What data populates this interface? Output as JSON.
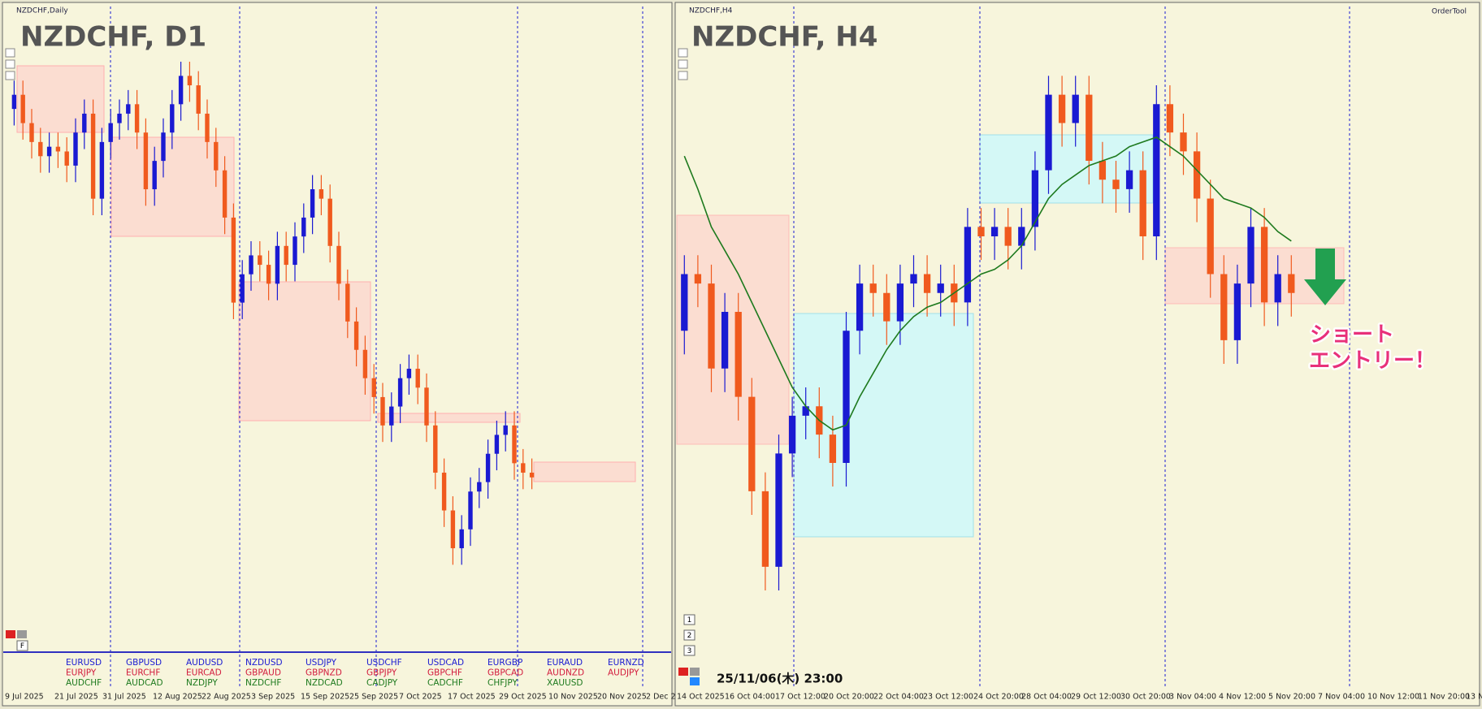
{
  "chart_data": [
    {
      "type": "candlestick",
      "window_title": "NZDCHF,Daily",
      "title": "NZDCHF, D1",
      "up_color": "#1a1ad2",
      "down_color": "#f05a1e",
      "ylim": [
        0.454,
        0.4812
      ],
      "x_labels": [
        "9 Jul 2025",
        "21 Jul 2025",
        "31 Jul 2025",
        "12 Aug 2025",
        "22 Aug 2025",
        "3 Sep 2025",
        "15 Sep 2025",
        "25 Sep 2025",
        "7 Oct 2025",
        "17 Oct 2025",
        "29 Oct 2025",
        "10 Nov 2025",
        "20 Nov 2025",
        "2 Dec 2"
      ],
      "buttons": [
        "F"
      ],
      "candles": [
        [
          0.477,
          0.4782,
          0.4763,
          0.4776
        ],
        [
          0.4776,
          0.4782,
          0.4757,
          0.4764
        ],
        [
          0.4764,
          0.477,
          0.4749,
          0.4756
        ],
        [
          0.4756,
          0.4762,
          0.4743,
          0.475
        ],
        [
          0.475,
          0.476,
          0.4743,
          0.4754
        ],
        [
          0.4754,
          0.476,
          0.4745,
          0.4752
        ],
        [
          0.4752,
          0.4758,
          0.4739,
          0.4746
        ],
        [
          0.4746,
          0.4766,
          0.4739,
          0.476
        ],
        [
          0.476,
          0.4774,
          0.4753,
          0.4768
        ],
        [
          0.4768,
          0.4774,
          0.4725,
          0.4732
        ],
        [
          0.4732,
          0.4762,
          0.4725,
          0.4756
        ],
        [
          0.4756,
          0.477,
          0.4749,
          0.4764
        ],
        [
          0.4764,
          0.4774,
          0.4757,
          0.4768
        ],
        [
          0.4768,
          0.4778,
          0.4761,
          0.4772
        ],
        [
          0.4772,
          0.4778,
          0.4753,
          0.476
        ],
        [
          0.476,
          0.4766,
          0.4729,
          0.4736
        ],
        [
          0.4736,
          0.4754,
          0.4729,
          0.4748
        ],
        [
          0.4748,
          0.4766,
          0.4741,
          0.476
        ],
        [
          0.476,
          0.4778,
          0.4753,
          0.4772
        ],
        [
          0.4772,
          0.479,
          0.4765,
          0.4784
        ],
        [
          0.4784,
          0.479,
          0.4773,
          0.478
        ],
        [
          0.478,
          0.4786,
          0.4761,
          0.4768
        ],
        [
          0.4768,
          0.4774,
          0.4749,
          0.4756
        ],
        [
          0.4756,
          0.4762,
          0.4737,
          0.4744
        ],
        [
          0.4744,
          0.475,
          0.4717,
          0.4724
        ],
        [
          0.4724,
          0.473,
          0.4681,
          0.4688
        ],
        [
          0.4688,
          0.4706,
          0.4681,
          0.47
        ],
        [
          0.47,
          0.4714,
          0.4693,
          0.4708
        ],
        [
          0.4708,
          0.4714,
          0.4697,
          0.4704
        ],
        [
          0.4704,
          0.471,
          0.4689,
          0.4696
        ],
        [
          0.4696,
          0.4718,
          0.4689,
          0.4712
        ],
        [
          0.4712,
          0.4718,
          0.4697,
          0.4704
        ],
        [
          0.4704,
          0.4722,
          0.4697,
          0.4716
        ],
        [
          0.4716,
          0.473,
          0.4709,
          0.4724
        ],
        [
          0.4724,
          0.4742,
          0.4717,
          0.4736
        ],
        [
          0.4736,
          0.4742,
          0.4725,
          0.4732
        ],
        [
          0.4732,
          0.4738,
          0.4705,
          0.4712
        ],
        [
          0.4712,
          0.4718,
          0.4689,
          0.4696
        ],
        [
          0.4696,
          0.4702,
          0.4673,
          0.468
        ],
        [
          0.468,
          0.4686,
          0.4661,
          0.4668
        ],
        [
          0.4668,
          0.4674,
          0.4649,
          0.4656
        ],
        [
          0.4656,
          0.4662,
          0.4641,
          0.4648
        ],
        [
          0.4648,
          0.4654,
          0.4629,
          0.4636
        ],
        [
          0.4636,
          0.465,
          0.4629,
          0.4644
        ],
        [
          0.4644,
          0.4662,
          0.4637,
          0.4656
        ],
        [
          0.4656,
          0.4666,
          0.4649,
          0.466
        ],
        [
          0.466,
          0.4666,
          0.4645,
          0.4652
        ],
        [
          0.4652,
          0.4658,
          0.4629,
          0.4636
        ],
        [
          0.4636,
          0.4642,
          0.4609,
          0.4616
        ],
        [
          0.4616,
          0.4622,
          0.4593,
          0.46
        ],
        [
          0.46,
          0.4606,
          0.4577,
          0.4584
        ],
        [
          0.4584,
          0.4598,
          0.4577,
          0.4592
        ],
        [
          0.4592,
          0.4614,
          0.4585,
          0.4608
        ],
        [
          0.4608,
          0.4618,
          0.4601,
          0.4612
        ],
        [
          0.4612,
          0.463,
          0.4605,
          0.4624
        ],
        [
          0.4624,
          0.4638,
          0.4617,
          0.4632
        ],
        [
          0.4632,
          0.4642,
          0.4625,
          0.4636
        ],
        [
          0.4636,
          0.4642,
          0.4613,
          0.462
        ],
        [
          0.462,
          0.4626,
          0.4609,
          0.4616
        ],
        [
          0.4616,
          0.4622,
          0.4609,
          0.4614
        ]
      ]
    },
    {
      "type": "candlestick",
      "window_title": "NZDCHF,H4",
      "title": "NZDCHF, H4",
      "up_color": "#1a1ad2",
      "down_color": "#f05a1e",
      "ylim": [
        0.4554,
        0.4698
      ],
      "x_labels": [
        "14 Oct 2025",
        "16 Oct 04:00",
        "17 Oct 12:00",
        "20 Oct 20:00",
        "22 Oct 04:00",
        "23 Oct 12:00",
        "24 Oct 20:00",
        "28 Oct 04:00",
        "29 Oct 12:00",
        "30 Oct 20:00",
        "3 Nov 04:00",
        "4 Nov 12:00",
        "5 Nov 20:00",
        "7 Nov 04:00",
        "10 Nov 12:00",
        "11 Nov 20:00",
        "13 N"
      ],
      "buttons": [
        "1",
        "2",
        "3"
      ],
      "toolbar": "OrderTool",
      "timestamp": "25/11/06(木) 23:00",
      "annotation": [
        "ショート",
        "エントリー！"
      ],
      "candles": [
        [
          0.463,
          0.4646,
          0.4625,
          0.4642
        ],
        [
          0.4642,
          0.4646,
          0.4635,
          0.464
        ],
        [
          0.464,
          0.4644,
          0.4617,
          0.4622
        ],
        [
          0.4622,
          0.4638,
          0.4617,
          0.4634
        ],
        [
          0.4634,
          0.4638,
          0.4611,
          0.4616
        ],
        [
          0.4616,
          0.462,
          0.4591,
          0.4596
        ],
        [
          0.4596,
          0.46,
          0.4575,
          0.458
        ],
        [
          0.458,
          0.4608,
          0.4575,
          0.4604
        ],
        [
          0.4604,
          0.4616,
          0.4599,
          0.4612
        ],
        [
          0.4612,
          0.4618,
          0.4607,
          0.4614
        ],
        [
          0.4614,
          0.4618,
          0.4603,
          0.4608
        ],
        [
          0.4608,
          0.4612,
          0.4597,
          0.4602
        ],
        [
          0.4602,
          0.4634,
          0.4597,
          0.463
        ],
        [
          0.463,
          0.4644,
          0.4625,
          0.464
        ],
        [
          0.464,
          0.4644,
          0.4633,
          0.4638
        ],
        [
          0.4638,
          0.4642,
          0.4627,
          0.4632
        ],
        [
          0.4632,
          0.4644,
          0.4627,
          0.464
        ],
        [
          0.464,
          0.4646,
          0.4635,
          0.4642
        ],
        [
          0.4642,
          0.4646,
          0.4633,
          0.4638
        ],
        [
          0.4638,
          0.4644,
          0.4633,
          0.464
        ],
        [
          0.464,
          0.4644,
          0.4631,
          0.4636
        ],
        [
          0.4636,
          0.4656,
          0.4631,
          0.4652
        ],
        [
          0.4652,
          0.4656,
          0.4645,
          0.465
        ],
        [
          0.465,
          0.4656,
          0.4645,
          0.4652
        ],
        [
          0.4652,
          0.4656,
          0.4643,
          0.4648
        ],
        [
          0.4648,
          0.4656,
          0.4643,
          0.4652
        ],
        [
          0.4652,
          0.4668,
          0.4647,
          0.4664
        ],
        [
          0.4664,
          0.4684,
          0.4659,
          0.468
        ],
        [
          0.468,
          0.4684,
          0.4669,
          0.4674
        ],
        [
          0.4674,
          0.4684,
          0.4669,
          0.468
        ],
        [
          0.468,
          0.4684,
          0.4661,
          0.4666
        ],
        [
          0.4666,
          0.467,
          0.4657,
          0.4662
        ],
        [
          0.4662,
          0.4666,
          0.4655,
          0.466
        ],
        [
          0.466,
          0.4668,
          0.4655,
          0.4664
        ],
        [
          0.4664,
          0.4668,
          0.4645,
          0.465
        ],
        [
          0.465,
          0.4682,
          0.4645,
          0.4678
        ],
        [
          0.4678,
          0.4682,
          0.4667,
          0.4672
        ],
        [
          0.4672,
          0.4676,
          0.4663,
          0.4668
        ],
        [
          0.4668,
          0.4672,
          0.4653,
          0.4658
        ],
        [
          0.4658,
          0.4662,
          0.4637,
          0.4642
        ],
        [
          0.4642,
          0.4646,
          0.4623,
          0.4628
        ],
        [
          0.4628,
          0.4644,
          0.4623,
          0.464
        ],
        [
          0.464,
          0.4656,
          0.4635,
          0.4652
        ],
        [
          0.4652,
          0.4656,
          0.4631,
          0.4636
        ],
        [
          0.4636,
          0.4646,
          0.4631,
          0.4642
        ],
        [
          0.4642,
          0.4646,
          0.4633,
          0.4638
        ]
      ],
      "ma": {
        "color": "#1e7a1e",
        "values": [
          0.4667,
          0.466,
          0.4652,
          0.4647,
          0.4642,
          0.4636,
          0.463,
          0.4624,
          0.4618,
          0.4614,
          0.4611,
          0.4609,
          0.461,
          0.4616,
          0.4621,
          0.4626,
          0.463,
          0.4633,
          0.4635,
          0.4636,
          0.4638,
          0.464,
          0.4642,
          0.4643,
          0.4645,
          0.4648,
          0.4653,
          0.4658,
          0.4661,
          0.4663,
          0.4665,
          0.4666,
          0.4667,
          0.4669,
          0.467,
          0.4671,
          0.4669,
          0.4667,
          0.4664,
          0.4661,
          0.4658,
          0.4657,
          0.4656,
          0.4654,
          0.4651,
          0.4649
        ]
      }
    }
  ],
  "symbol_panel": {
    "colors": [
      "#1a1ad2",
      "#d21a3c",
      "#1e7a1e"
    ],
    "columns": [
      [
        "EURUSD",
        "EURJPY",
        "AUDCHF"
      ],
      [
        "GBPUSD",
        "EURCHF",
        "AUDCAD"
      ],
      [
        "AUDUSD",
        "EURCAD",
        "NZDJPY"
      ],
      [
        "NZDUSD",
        "GBPAUD",
        "NZDCHF"
      ],
      [
        "USDJPY",
        "GBPNZD",
        "NZDCAD"
      ],
      [
        "USDCHF",
        "GBPJPY",
        "CADJPY"
      ],
      [
        "USDCAD",
        "GBPCHF",
        "CADCHF"
      ],
      [
        "EURGBP",
        "GBPCAD",
        "CHFJPY"
      ],
      [
        "EURAUD",
        "AUDNZD",
        "XAUUSD"
      ],
      [
        "EURNZD",
        "AUDJPY"
      ]
    ]
  }
}
